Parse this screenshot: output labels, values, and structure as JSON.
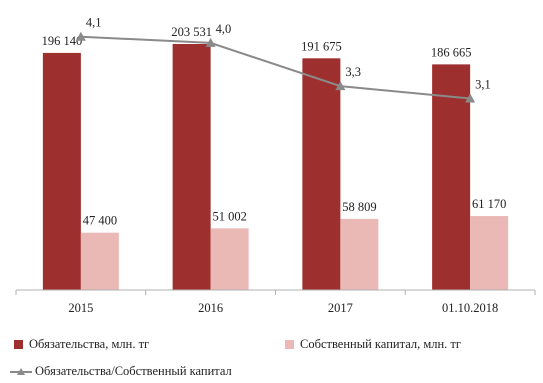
{
  "chart_data": {
    "type": "bar",
    "categories": [
      "2015",
      "2016",
      "2017",
      "01.10.2018"
    ],
    "series": [
      {
        "name": "Обязательства, млн. тг",
        "kind": "bar",
        "axis": "left",
        "color": "#9e2f2f",
        "values": [
          196140,
          203531,
          191675,
          186665
        ],
        "labels": [
          "196 140",
          "203 531",
          "191 675",
          "186 665"
        ]
      },
      {
        "name": "Собственный капитал, млн. тг",
        "kind": "bar",
        "axis": "left",
        "color": "#eab9b6",
        "values": [
          47400,
          51002,
          58809,
          61170
        ],
        "labels": [
          "47 400",
          "51 002",
          "58 809",
          "61 170"
        ]
      },
      {
        "name": "Обязательства/Собственный капитал",
        "kind": "line",
        "axis": "right",
        "color": "#8a8a8a",
        "marker": "triangle",
        "values": [
          4.1,
          4.0,
          3.3,
          3.1
        ],
        "labels": [
          "4,1",
          "4,0",
          "3,3",
          "3,1"
        ]
      }
    ],
    "ylim": [
      0,
      230000
    ],
    "y2lim": [
      0,
      4.5
    ],
    "grid": false,
    "legend_position": "bottom"
  }
}
